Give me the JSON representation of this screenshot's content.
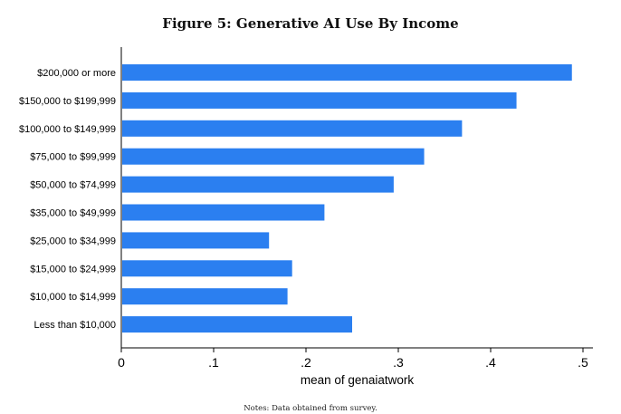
{
  "figure": {
    "title": "Figure 5: Generative AI Use By Income",
    "notes": "Notes: Data obtained from survey."
  },
  "chart_data": {
    "type": "bar",
    "orientation": "horizontal",
    "categories": [
      "$200,000 or more",
      "$150,000 to $199,999",
      "$100,000 to $149,999",
      "$75,000 to $99,999",
      "$50,000 to $74,999",
      "$35,000 to $49,999",
      "$25,000 to $34,999",
      "$15,000 to $24,999",
      "$10,000 to $14,999",
      "Less than $10,000"
    ],
    "values": [
      0.488,
      0.428,
      0.369,
      0.328,
      0.295,
      0.22,
      0.16,
      0.185,
      0.18,
      0.25
    ],
    "xlabel": "mean of genaiatwork",
    "ylabel": "",
    "xlim": [
      0,
      0.51
    ],
    "xticks": [
      0,
      0.1,
      0.2,
      0.3,
      0.4,
      0.5
    ],
    "xtick_labels": [
      "0",
      ".1",
      ".2",
      ".3",
      ".4",
      ".5"
    ],
    "bar_color": "#2b7ff0",
    "grid": false,
    "legend": "none"
  }
}
